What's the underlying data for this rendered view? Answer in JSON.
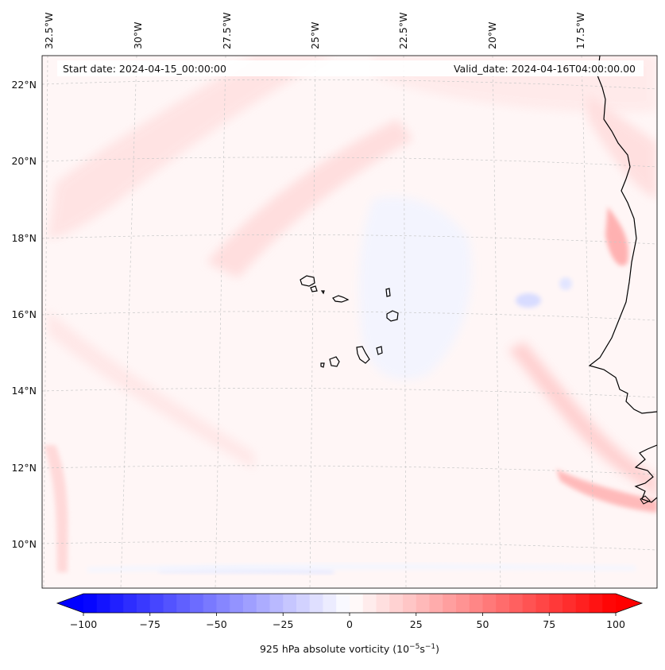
{
  "map": {
    "header": {
      "start_date": "Start date: 2024-04-15_00:00:00",
      "valid_date": "Valid_date: 2024-04-16T04:00:00.00"
    },
    "longitude_labels": [
      "32.5°W",
      "30°W",
      "27.5°W",
      "25°W",
      "22.5°W",
      "20°W",
      "17.5°W"
    ],
    "latitude_labels": [
      "22°N",
      "20°N",
      "18°N",
      "16°N",
      "14°N",
      "12°N",
      "10°N"
    ],
    "field": "925 hPa absolute vorticity",
    "features": [
      "Cape Verde islands",
      "West African coastline"
    ]
  },
  "colorbar": {
    "label_prefix": "925 hPa absolute vorticity (10",
    "exp1": "−5",
    "label_mid": "s",
    "exp2": "−1",
    "label_suffix": ")",
    "ticks": [
      "−100",
      "−75",
      "−50",
      "−25",
      "0",
      "25",
      "50",
      "75",
      "100"
    ],
    "range": [
      -100,
      100
    ],
    "step": 5,
    "neg_color": "#0000ff",
    "pos_color": "#ff0000"
  }
}
